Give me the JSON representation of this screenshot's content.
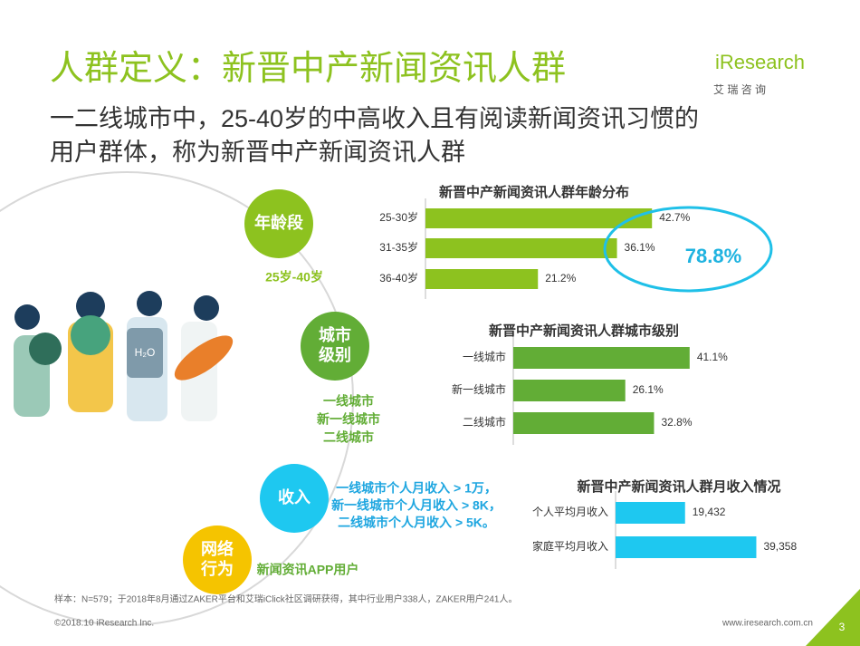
{
  "header": {
    "title": "人群定义：新晋中产新闻资讯人群",
    "subtitle_lines": [
      "一二线城市中，25-40岁的中高收入且有阅读新闻资讯习惯的",
      "用户群体，称为新晋中产新闻资讯人群"
    ],
    "logo": "iResearch",
    "logo_sub": "艾 瑞 咨 询"
  },
  "dimensions": [
    {
      "label": [
        "年龄段"
      ],
      "detail": [
        "25岁-40岁"
      ]
    },
    {
      "label": [
        "城市",
        "级别"
      ],
      "detail": [
        "一线城市",
        "新一线城市",
        "二线城市"
      ]
    },
    {
      "label": [
        "收入"
      ],
      "detail": [
        "一线城市个人月收入 > 1万，",
        "新一线城市个人月收入 > 8K，",
        "二线城市个人月收入 > 5K。"
      ]
    },
    {
      "label": [
        "网络",
        "行为"
      ],
      "detail": [
        "新闻资讯APP用户"
      ]
    }
  ],
  "chart_data": [
    {
      "type": "bar",
      "title": "新晋中产新闻资讯人群年龄分布",
      "categories": [
        "25-30岁",
        "31-35岁",
        "36-40岁"
      ],
      "values": [
        42.7,
        36.1,
        21.2
      ],
      "value_labels": [
        "42.7%",
        "36.1%",
        "21.2%"
      ],
      "color": "#8dc21f",
      "xlim": [
        0,
        50
      ],
      "annotation": "78.8%"
    },
    {
      "type": "bar",
      "title": "新晋中产新闻资讯人群城市级别",
      "categories": [
        "一线城市",
        "新一线城市",
        "二线城市"
      ],
      "values": [
        41.1,
        26.1,
        32.8
      ],
      "value_labels": [
        "41.1%",
        "26.1%",
        "32.8%"
      ],
      "color": "#62ad36",
      "xlim": [
        0,
        50
      ]
    },
    {
      "type": "bar",
      "title": "新晋中产新闻资讯人群月收入情况",
      "categories": [
        "个人平均月收入",
        "家庭平均月收入"
      ],
      "values": [
        19432,
        39358
      ],
      "value_labels": [
        "19,432",
        "39,358"
      ],
      "color": "#1ec8f0",
      "xlim": [
        0,
        40000
      ]
    }
  ],
  "footer": {
    "note": "样本：N=579；于2018年8月通过ZAKER平台和艾瑞iClick社区调研获得，其中行业用户338人，ZAKER用户241人。",
    "copyright": "©2018.10 iResearch Inc.",
    "url": "www.iresearch.com.cn",
    "page": "3"
  }
}
